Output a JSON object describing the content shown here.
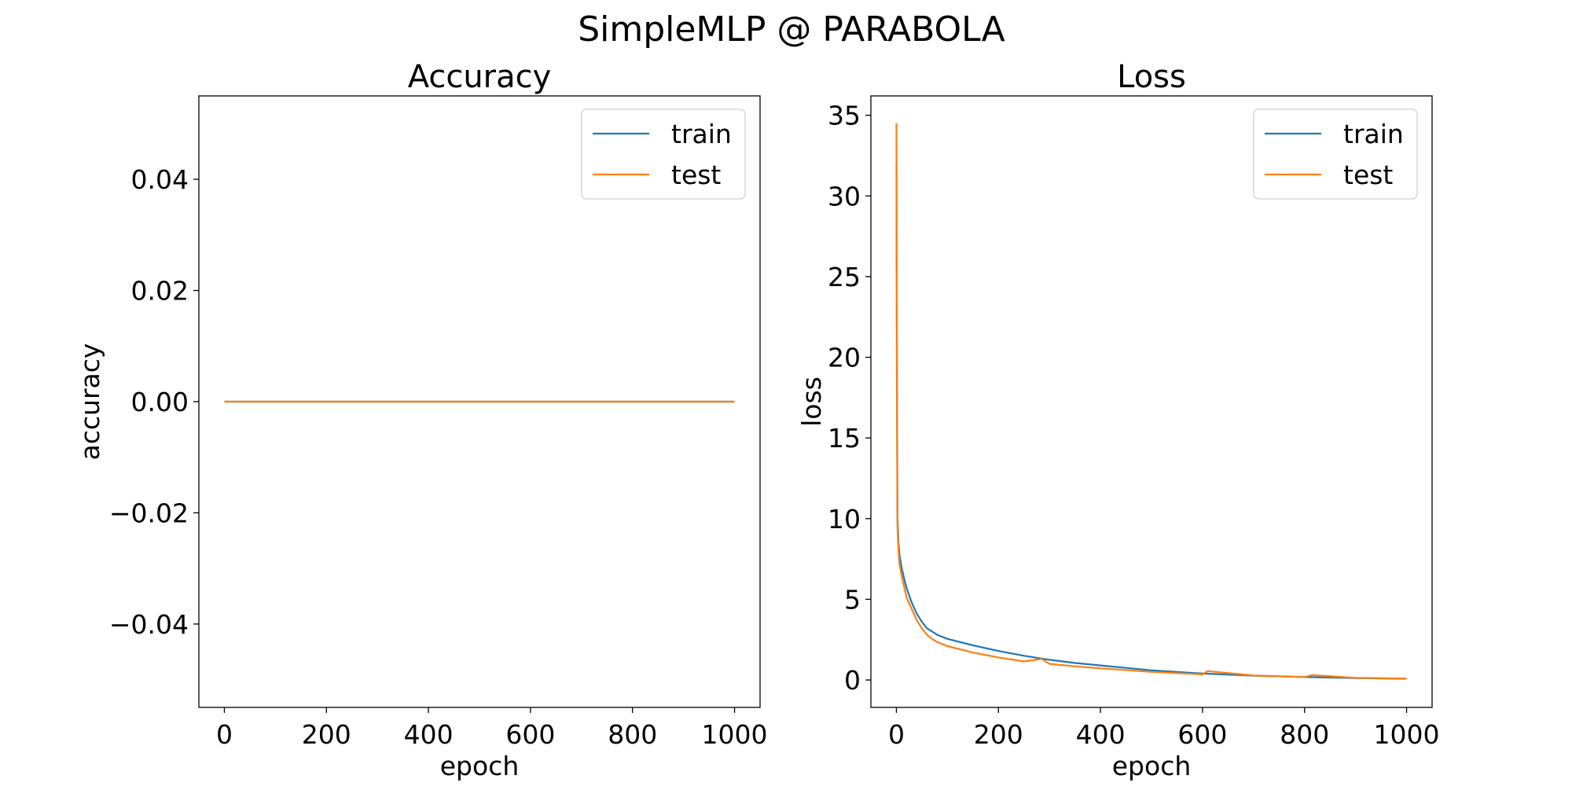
{
  "figure": {
    "suptitle": "SimpleMLP @ PARABOLA"
  },
  "colors": {
    "train": "#1f77b4",
    "test": "#ff7f0e"
  },
  "chart_data": [
    {
      "type": "line",
      "title": "Accuracy",
      "xlabel": "epoch",
      "ylabel": "accuracy",
      "xlim": [
        -50,
        1050
      ],
      "ylim": [
        -0.055,
        0.055
      ],
      "xticks": [
        0,
        200,
        400,
        600,
        800,
        1000
      ],
      "xtick_labels": [
        "0",
        "200",
        "400",
        "600",
        "800",
        "1000"
      ],
      "yticks": [
        -0.04,
        -0.02,
        0.0,
        0.02,
        0.04
      ],
      "ytick_labels": [
        "−0.04",
        "−0.02",
        "0.00",
        "0.02",
        "0.04"
      ],
      "legend": "top-right",
      "grid": false,
      "series": [
        {
          "name": "train",
          "x": [
            0,
            1000
          ],
          "y": [
            0,
            0
          ]
        },
        {
          "name": "test",
          "x": [
            0,
            1000
          ],
          "y": [
            0,
            0
          ]
        }
      ]
    },
    {
      "type": "line",
      "title": "Loss",
      "xlabel": "epoch",
      "ylabel": "loss",
      "xlim": [
        -50,
        1050
      ],
      "ylim": [
        -1.7,
        36.2
      ],
      "xticks": [
        0,
        200,
        400,
        600,
        800,
        1000
      ],
      "xtick_labels": [
        "0",
        "200",
        "400",
        "600",
        "800",
        "1000"
      ],
      "yticks": [
        0,
        5,
        10,
        15,
        20,
        25,
        30,
        35
      ],
      "ytick_labels": [
        "0",
        "5",
        "10",
        "15",
        "20",
        "25",
        "30",
        "35"
      ],
      "legend": "top-right",
      "grid": false,
      "series": [
        {
          "name": "train",
          "x": [
            0,
            1,
            2,
            4,
            6,
            10,
            15,
            20,
            30,
            40,
            50,
            60,
            80,
            100,
            150,
            200,
            250,
            300,
            350,
            400,
            500,
            600,
            700,
            800,
            900,
            1000
          ],
          "y": [
            32,
            20,
            10,
            8.5,
            7.8,
            7.0,
            6.3,
            5.7,
            4.8,
            4.1,
            3.6,
            3.2,
            2.8,
            2.55,
            2.15,
            1.8,
            1.5,
            1.25,
            1.05,
            0.9,
            0.6,
            0.4,
            0.27,
            0.18,
            0.12,
            0.08
          ]
        },
        {
          "name": "test",
          "x": [
            0,
            1,
            2,
            4,
            6,
            10,
            15,
            20,
            30,
            40,
            50,
            60,
            70,
            80,
            100,
            150,
            200,
            250,
            285,
            300,
            350,
            400,
            500,
            600,
            610,
            700,
            800,
            815,
            900,
            1000
          ],
          "y": [
            34.5,
            18,
            9.5,
            8.0,
            7.2,
            6.5,
            5.8,
            5.1,
            4.4,
            3.7,
            3.2,
            2.8,
            2.55,
            2.35,
            2.1,
            1.7,
            1.4,
            1.15,
            1.3,
            1.0,
            0.85,
            0.72,
            0.5,
            0.35,
            0.55,
            0.28,
            0.18,
            0.3,
            0.13,
            0.09
          ]
        }
      ]
    }
  ]
}
